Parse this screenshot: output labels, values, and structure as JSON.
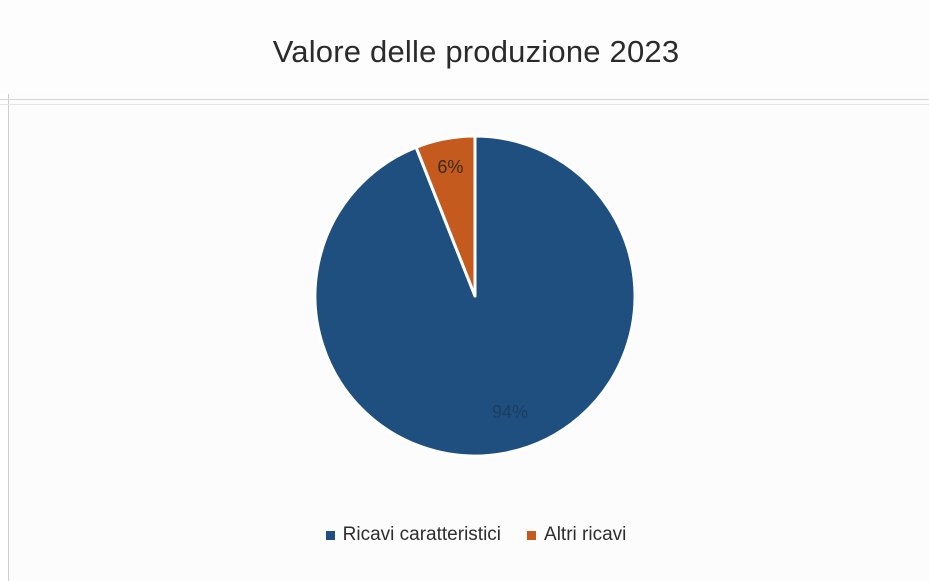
{
  "chart_data": {
    "type": "pie",
    "title": "Valore delle produzione 2023",
    "categories": [
      "Ricavi caratteristici",
      "Altri ricavi"
    ],
    "values": [
      94,
      6
    ],
    "labels": [
      "94%",
      "6%"
    ],
    "colors": [
      "#1f4f7f",
      "#c55a1e"
    ],
    "legend_position": "bottom"
  }
}
